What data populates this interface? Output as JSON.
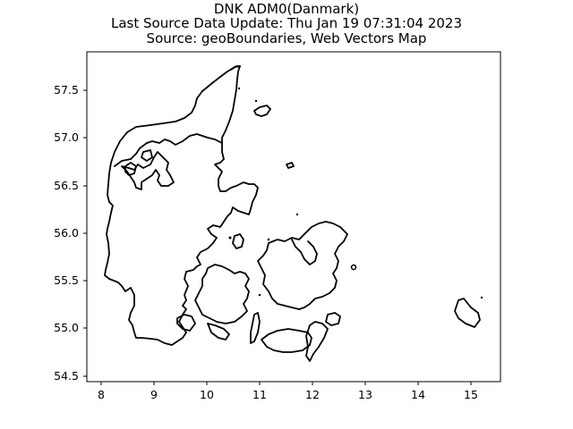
{
  "map": {
    "title_lines": [
      "DNK ADM0(Danmark)",
      "Last Source Data Update: Thu Jan 19 07:31:04 2023",
      "Source: geoBoundaries, Web Vectors Map"
    ],
    "x_ticks": [
      "8",
      "9",
      "10",
      "11",
      "12",
      "13",
      "14",
      "15"
    ],
    "y_ticks": [
      "57.5",
      "57.0",
      "56.5",
      "56.0",
      "55.5",
      "55.0",
      "54.5"
    ],
    "xlim": [
      7.75,
      15.55
    ],
    "ylim": [
      54.45,
      57.9
    ],
    "outline_color": "#000000",
    "background_color": "#ffffff"
  }
}
